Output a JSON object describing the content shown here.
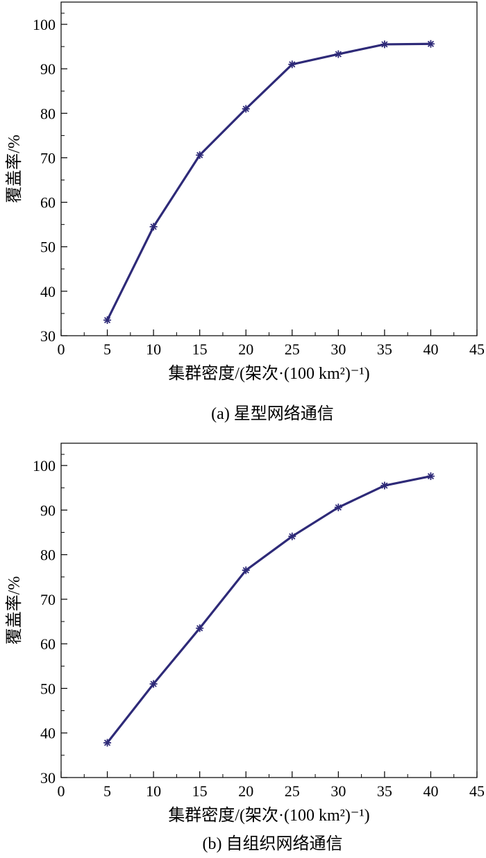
{
  "chart_data": [
    {
      "type": "line",
      "caption": "(a) 星型网络通信",
      "xlabel": "集群密度/(架次·(100 km²)⁻¹)",
      "ylabel": "覆盖率/%",
      "xlim": [
        0,
        45
      ],
      "ylim": [
        30,
        105
      ],
      "xticks": [
        0,
        5,
        10,
        15,
        20,
        25,
        30,
        35,
        40,
        45
      ],
      "yticks": [
        30,
        40,
        50,
        60,
        70,
        80,
        90,
        100
      ],
      "x": [
        5,
        10,
        15,
        20,
        25,
        30,
        35,
        40
      ],
      "series": [
        {
          "values": [
            33.5,
            54.5,
            70.6,
            81.0,
            91.0,
            93.3,
            95.5,
            95.6
          ]
        }
      ],
      "grid": false,
      "color": "#2e2a78"
    },
    {
      "type": "line",
      "caption": "(b) 自组织网络通信",
      "xlabel": "集群密度/(架次·(100 km²)⁻¹)",
      "ylabel": "覆盖率/%",
      "xlim": [
        0,
        45
      ],
      "ylim": [
        30,
        105
      ],
      "xticks": [
        0,
        5,
        10,
        15,
        20,
        25,
        30,
        35,
        40,
        45
      ],
      "yticks": [
        30,
        40,
        50,
        60,
        70,
        80,
        90,
        100
      ],
      "x": [
        5,
        10,
        15,
        20,
        25,
        30,
        35,
        40
      ],
      "series": [
        {
          "values": [
            37.8,
            51.0,
            63.5,
            76.5,
            84.1,
            90.6,
            95.5,
            97.6
          ]
        }
      ],
      "grid": false,
      "color": "#2e2a78"
    }
  ]
}
